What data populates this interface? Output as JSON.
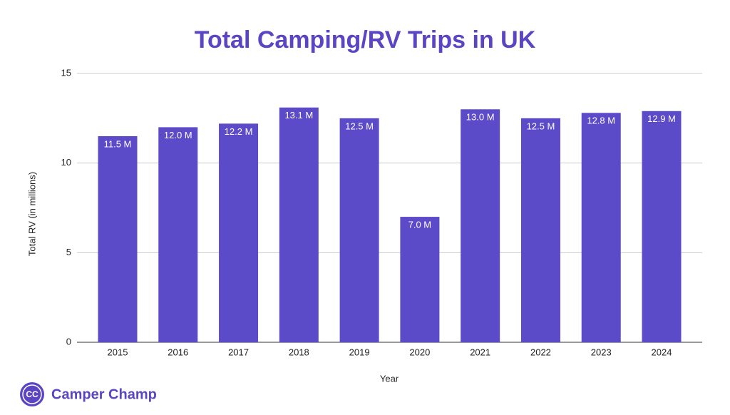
{
  "chart_data": {
    "type": "bar",
    "title": "Total Camping/RV Trips in UK",
    "x_label": "Year",
    "y_label": "Total RV (in millions)",
    "categories": [
      "2015",
      "2016",
      "2017",
      "2018",
      "2019",
      "2020",
      "2021",
      "2022",
      "2023",
      "2024"
    ],
    "values": [
      11.5,
      12.0,
      12.2,
      13.1,
      12.5,
      7.0,
      13.0,
      12.5,
      12.8,
      12.9
    ],
    "value_labels": [
      "11.5 M",
      "12.0 M",
      "12.2 M",
      "13.1 M",
      "12.5 M",
      "7.0 M",
      "13.0 M",
      "12.5 M",
      "12.8 M",
      "12.9 M"
    ],
    "color": "#5b4bc9",
    "ylim": [
      0,
      15
    ],
    "yticks": [
      0,
      5,
      10,
      15
    ],
    "grid": true
  },
  "brand": {
    "logo": "CC",
    "name": "Camper Champ"
  }
}
